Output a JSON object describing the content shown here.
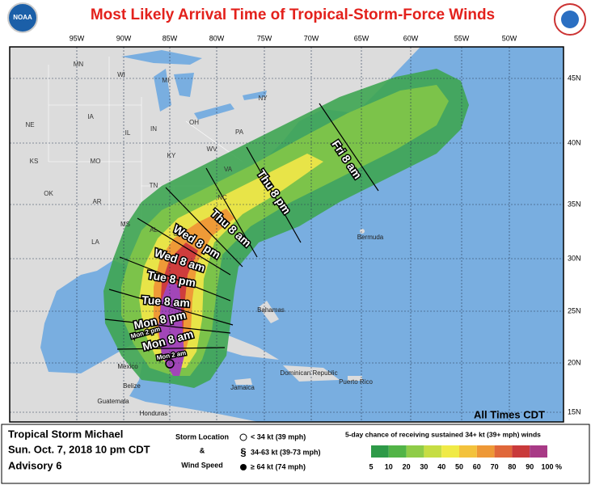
{
  "header": {
    "title": "Most Likely Arrival Time of Tropical-Storm-Force Winds",
    "logo_left": "NOAA"
  },
  "map": {
    "lon_labels": [
      "95W",
      "90W",
      "85W",
      "80W",
      "75W",
      "70W",
      "65W",
      "60W",
      "55W",
      "50W"
    ],
    "lat_labels": [
      "45N",
      "40N",
      "35N",
      "30N",
      "25N",
      "20N",
      "15N"
    ],
    "state_labels": [
      "MN",
      "WI",
      "MI",
      "NY",
      "IA",
      "PA",
      "NE",
      "IL",
      "IN",
      "OH",
      "KS",
      "MO",
      "KY",
      "WV",
      "VA",
      "OK",
      "AR",
      "TN",
      "NC",
      "SC",
      "MS",
      "AL",
      "GA",
      "LA"
    ],
    "place_labels": [
      "Bermuda",
      "Bahamas",
      "Mexico",
      "Belize",
      "Guatemala",
      "Honduras",
      "Jamaica",
      "Dominican Republic",
      "Puerto Rico"
    ],
    "time_labels": [
      "Fri 8 am",
      "Thu 8 pm",
      "Thu 8 am",
      "Wed 8 pm",
      "Wed 8 am",
      "Tue 8 pm",
      "Tue 8 am",
      "Mon 8 pm",
      "Mon 2 pm",
      "Mon 8 am",
      "Mon 2 am"
    ],
    "note": "All Times CDT"
  },
  "info": {
    "storm": "Tropical Storm Michael",
    "datetime": "Sun. Oct. 7, 2018  10 pm CDT",
    "advisory": "Advisory 6"
  },
  "key": {
    "line1": "Storm Location",
    "line2": "&",
    "line3": "Wind Speed",
    "items": [
      "< 34 kt (39 mph)",
      "34-63 kt (39-73 mph)",
      "≥ 64 kt (74 mph)"
    ]
  },
  "legend": {
    "title": "5-day chance of receiving sustained 34+ kt (39+ mph) winds",
    "labels": [
      5,
      10,
      20,
      30,
      40,
      50,
      60,
      70,
      80,
      90,
      100
    ],
    "unit": "%",
    "colors": [
      "#2e9a48",
      "#52b447",
      "#8fcc48",
      "#c6dd43",
      "#f0ea46",
      "#f3c23c",
      "#ee9836",
      "#e0673a",
      "#c93a3b",
      "#a83a86"
    ]
  }
}
